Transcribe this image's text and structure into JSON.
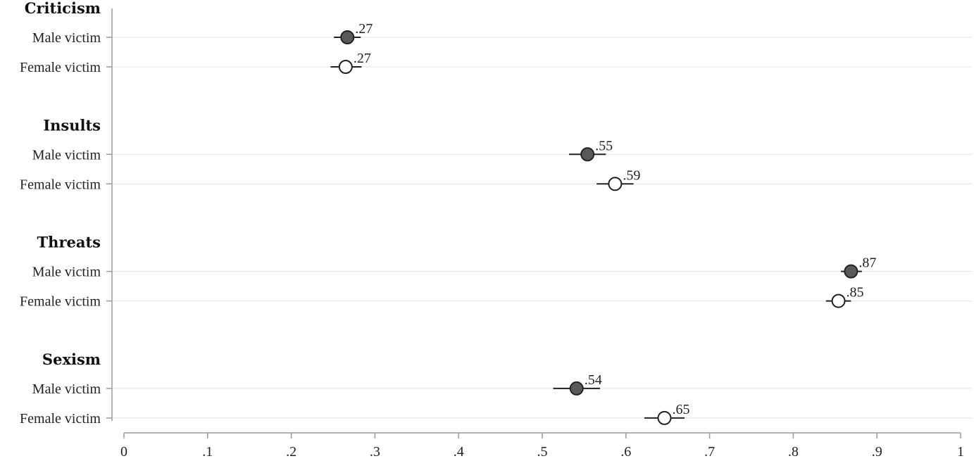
{
  "chart_data": {
    "type": "scatter",
    "x_ticks": [
      "0",
      ".1",
      ".2",
      ".3",
      ".4",
      ".5",
      ".6",
      ".7",
      ".8",
      ".9",
      "1"
    ],
    "xlim": [
      0,
      1
    ],
    "grid": true,
    "colors": {
      "male": "#5a5a5a",
      "female": "#ffffff"
    },
    "groups": [
      {
        "name": "Criticism",
        "rows": [
          {
            "label": "Male victim",
            "type": "male",
            "value": 0.267,
            "ci": [
              0.251,
              0.283
            ],
            "value_label": ".27"
          },
          {
            "label": "Female victim",
            "type": "female",
            "value": 0.265,
            "ci": [
              0.247,
              0.284
            ],
            "value_label": ".27"
          }
        ]
      },
      {
        "name": "Insults",
        "rows": [
          {
            "label": "Male victim",
            "type": "male",
            "value": 0.554,
            "ci": [
              0.532,
              0.576
            ],
            "value_label": ".55"
          },
          {
            "label": "Female victim",
            "type": "female",
            "value": 0.587,
            "ci": [
              0.565,
              0.609
            ],
            "value_label": ".59"
          }
        ]
      },
      {
        "name": "Threats",
        "rows": [
          {
            "label": "Male victim",
            "type": "male",
            "value": 0.869,
            "ci": [
              0.857,
              0.882
            ],
            "value_label": ".87"
          },
          {
            "label": "Female victim",
            "type": "female",
            "value": 0.854,
            "ci": [
              0.839,
              0.869
            ],
            "value_label": ".85"
          }
        ]
      },
      {
        "name": "Sexism",
        "rows": [
          {
            "label": "Male victim",
            "type": "male",
            "value": 0.541,
            "ci": [
              0.513,
              0.569
            ],
            "value_label": ".54"
          },
          {
            "label": "Female victim",
            "type": "female",
            "value": 0.646,
            "ci": [
              0.622,
              0.67
            ],
            "value_label": ".65"
          }
        ]
      }
    ]
  }
}
